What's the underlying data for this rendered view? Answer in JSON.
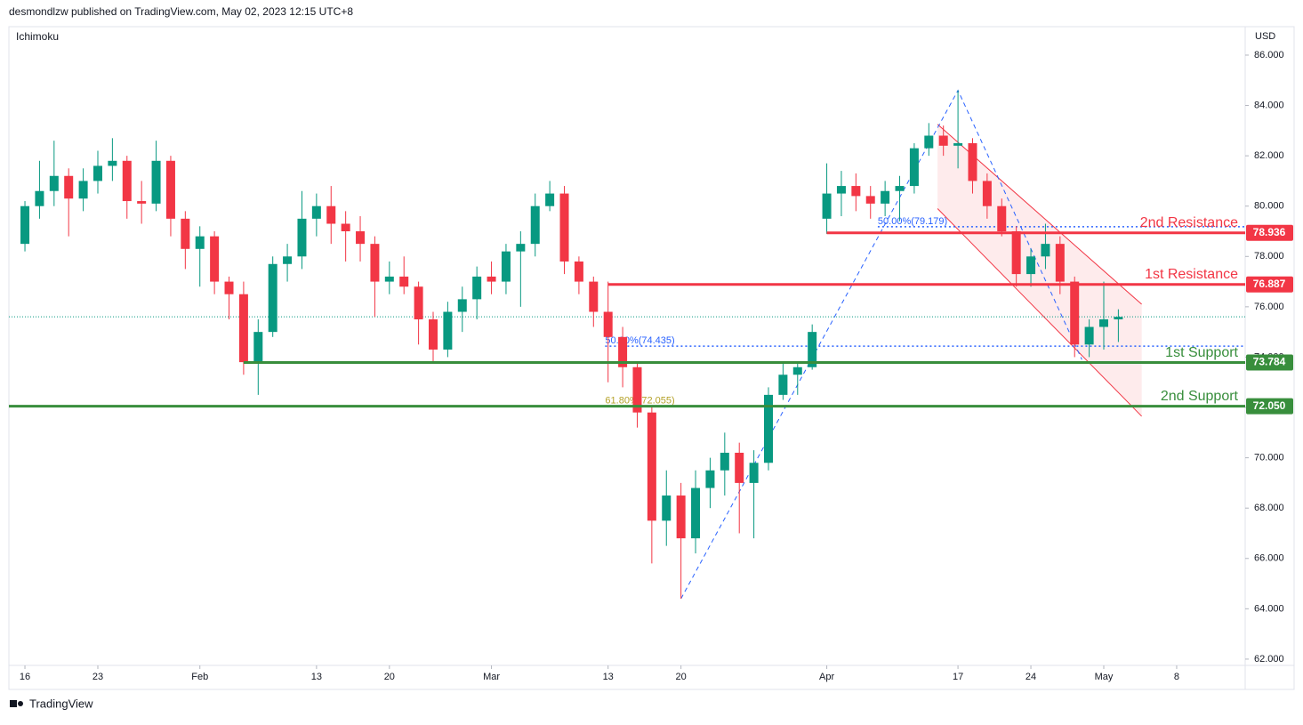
{
  "header": {
    "publisher": "desmondlzw published on TradingView.com, May 02, 2023 12:15 UTC+8",
    "indicator": "Ichimoku",
    "currency": "USD"
  },
  "footer": {
    "brand": "TradingView"
  },
  "chart_data": {
    "type": "candlestick",
    "xlim": [
      -1.1,
      83.7
    ],
    "ylim": [
      61.75,
      87.13
    ],
    "xticks": [
      {
        "value": 0,
        "label": "16"
      },
      {
        "value": 5,
        "label": "23"
      },
      {
        "value": 12,
        "label": "Feb"
      },
      {
        "value": 20,
        "label": "13"
      },
      {
        "value": 25,
        "label": "20"
      },
      {
        "value": 32,
        "label": "Mar"
      },
      {
        "value": 40,
        "label": "13"
      },
      {
        "value": 45,
        "label": "20"
      },
      {
        "value": 55,
        "label": "Apr"
      },
      {
        "value": 64,
        "label": "17"
      },
      {
        "value": 69,
        "label": "24"
      },
      {
        "value": 74,
        "label": "May"
      },
      {
        "value": 79,
        "label": "8"
      }
    ],
    "yticks": [
      {
        "value": 62,
        "label": "62.000"
      },
      {
        "value": 64,
        "label": "64.000"
      },
      {
        "value": 66,
        "label": "66.000"
      },
      {
        "value": 68,
        "label": "68.000"
      },
      {
        "value": 70,
        "label": "70.000"
      },
      {
        "value": 72,
        "label": "72.000"
      },
      {
        "value": 74,
        "label": "74.000"
      },
      {
        "value": 76,
        "label": "76.000"
      },
      {
        "value": 78,
        "label": "78.000"
      },
      {
        "value": 80,
        "label": "80.000"
      },
      {
        "value": 82,
        "label": "82.000"
      },
      {
        "value": 84,
        "label": "84.000"
      },
      {
        "value": 86,
        "label": "86.000"
      }
    ],
    "up_color": "#089981",
    "down_color": "#f23645",
    "x": [
      0,
      1,
      2,
      3,
      4,
      5,
      6,
      7,
      8,
      9,
      10,
      11,
      12,
      13,
      14,
      15,
      16,
      17,
      18,
      19,
      20,
      21,
      22,
      23,
      24,
      25,
      26,
      27,
      28,
      29,
      30,
      31,
      32,
      33,
      34,
      35,
      36,
      37,
      38,
      39,
      40,
      41,
      42,
      43,
      44,
      45,
      46,
      47,
      48,
      49,
      50,
      51,
      52,
      53,
      54,
      55,
      56,
      57,
      58,
      59,
      60,
      61,
      62,
      63,
      64,
      65,
      66,
      67,
      68,
      69,
      70,
      71,
      72,
      73,
      74,
      75
    ],
    "open": [
      78.5,
      80,
      80.6,
      81.2,
      80.3,
      81,
      81.6,
      81.8,
      80.2,
      80.1,
      81.8,
      79.5,
      78.3,
      78.8,
      77,
      76.5,
      73.8,
      75,
      77.7,
      78,
      79.5,
      80,
      79.3,
      79,
      78.5,
      77,
      77.2,
      76.8,
      75.5,
      74.3,
      75.8,
      76.3,
      77.2,
      77,
      78.2,
      78.5,
      80,
      80.5,
      77.8,
      77,
      75.8,
      74.8,
      73.6,
      71.8,
      67.5,
      68.5,
      66.8,
      68.8,
      69.5,
      70.2,
      69,
      69.8,
      72.5,
      73.3,
      73.6,
      79.5,
      80.5,
      80.8,
      80.4,
      80.1,
      80.6,
      80.8,
      82.3,
      82.8,
      82.4,
      82.5,
      81,
      80,
      79,
      77.3,
      78,
      78.5,
      77,
      74.5,
      75.2,
      75.5
    ],
    "high": [
      80.2,
      81.8,
      82.6,
      81.5,
      81.5,
      82.2,
      82.7,
      82,
      81,
      82.6,
      82,
      79.8,
      79.2,
      79,
      77.2,
      77,
      75.5,
      78,
      78.5,
      80.6,
      80.5,
      80.8,
      79.8,
      79.6,
      78.8,
      77.8,
      78,
      77,
      75.8,
      76.2,
      76.8,
      77.6,
      77.8,
      78.5,
      79,
      80.5,
      81,
      80.8,
      78,
      77.2,
      77,
      75.2,
      73.8,
      72,
      69.5,
      69,
      69.5,
      70,
      71,
      70.6,
      70.3,
      72.8,
      73.8,
      73.8,
      75.3,
      81.7,
      81.4,
      81.3,
      80.8,
      81,
      81.2,
      82.5,
      83.3,
      83.2,
      84.6,
      82.7,
      81.3,
      80.3,
      79.2,
      78.3,
      79.3,
      78.8,
      77.2,
      75.5,
      77,
      75.9
    ],
    "low": [
      78.2,
      79.5,
      80,
      78.8,
      79.8,
      80.5,
      81,
      79.5,
      79.3,
      79.8,
      78.8,
      77.5,
      76.8,
      76.5,
      75.5,
      73.3,
      72.5,
      74.8,
      77,
      77.5,
      78.8,
      78.5,
      77.8,
      77.8,
      75.6,
      76.5,
      76.5,
      74.5,
      73.8,
      74,
      75,
      75.5,
      76.5,
      76.5,
      76,
      78,
      79.8,
      77.3,
      76.5,
      75.2,
      73,
      72.8,
      71.2,
      65.8,
      66.5,
      64.4,
      66.2,
      68,
      68.5,
      67,
      66.8,
      69.5,
      72.3,
      72.5,
      73.5,
      78.9,
      79.6,
      79.8,
      79.5,
      79.6,
      79.4,
      80.5,
      82,
      82,
      81.5,
      80.5,
      79.5,
      78.8,
      76.8,
      76.8,
      77.5,
      76.5,
      74,
      74,
      74.3,
      74.6
    ],
    "close": [
      80,
      80.6,
      81.2,
      80.3,
      81,
      81.6,
      81.8,
      80.2,
      80.1,
      81.8,
      79.5,
      78.3,
      78.8,
      77,
      76.5,
      73.8,
      75,
      77.7,
      78,
      79.5,
      80,
      79.3,
      79,
      78.5,
      77,
      77.2,
      76.8,
      75.5,
      74.3,
      75.8,
      76.3,
      77.2,
      77,
      78.2,
      78.5,
      80,
      80.5,
      77.8,
      77,
      75.8,
      74.8,
      73.6,
      71.8,
      67.5,
      68.5,
      66.8,
      68.8,
      69.5,
      70.2,
      69,
      69.8,
      72.5,
      73.3,
      73.6,
      75,
      80.5,
      80.8,
      80.4,
      80.1,
      80.6,
      80.8,
      82.3,
      82.8,
      82.4,
      82.5,
      81,
      80,
      79,
      77.3,
      78,
      78.5,
      77,
      74.5,
      75.2,
      75.5,
      75.6
    ],
    "levels": [
      {
        "name": "2nd Resistance",
        "value": 78.936,
        "value_label": "78.936",
        "color": "#f23645",
        "start": 55
      },
      {
        "name": "1st Resistance",
        "value": 76.887,
        "value_label": "76.887",
        "color": "#f23645",
        "start": 40
      },
      {
        "name": "1st Support",
        "value": 73.784,
        "value_label": "73.784",
        "color": "#388e3c",
        "start": 15
      },
      {
        "name": "2nd Support",
        "value": 72.05,
        "value_label": "72.050",
        "color": "#388e3c",
        "start": -1.1
      }
    ],
    "fib_levels": [
      {
        "label": "50.00%(79.179)",
        "value": 79.179,
        "color": "#2962ff",
        "start": 58.5
      },
      {
        "label": "50.00%(74.435)",
        "value": 74.435,
        "color": "#2962ff",
        "start": 39.8
      },
      {
        "label": "61.80%(72.055)",
        "value": 72.055,
        "color": "#b5a22a",
        "start": 39.8
      }
    ],
    "trend_line": {
      "x": [
        45,
        64,
        72.5
      ],
      "y": [
        64.4,
        84.6,
        73.9
      ],
      "color": "#2962ff"
    },
    "channel": {
      "upper": {
        "x": [
          62.6,
          76.6
        ],
        "y": [
          83.25,
          76.1
        ]
      },
      "lower": {
        "x": [
          62.6,
          76.6
        ],
        "y": [
          79.9,
          71.65
        ]
      },
      "color": "#f23645"
    }
  }
}
